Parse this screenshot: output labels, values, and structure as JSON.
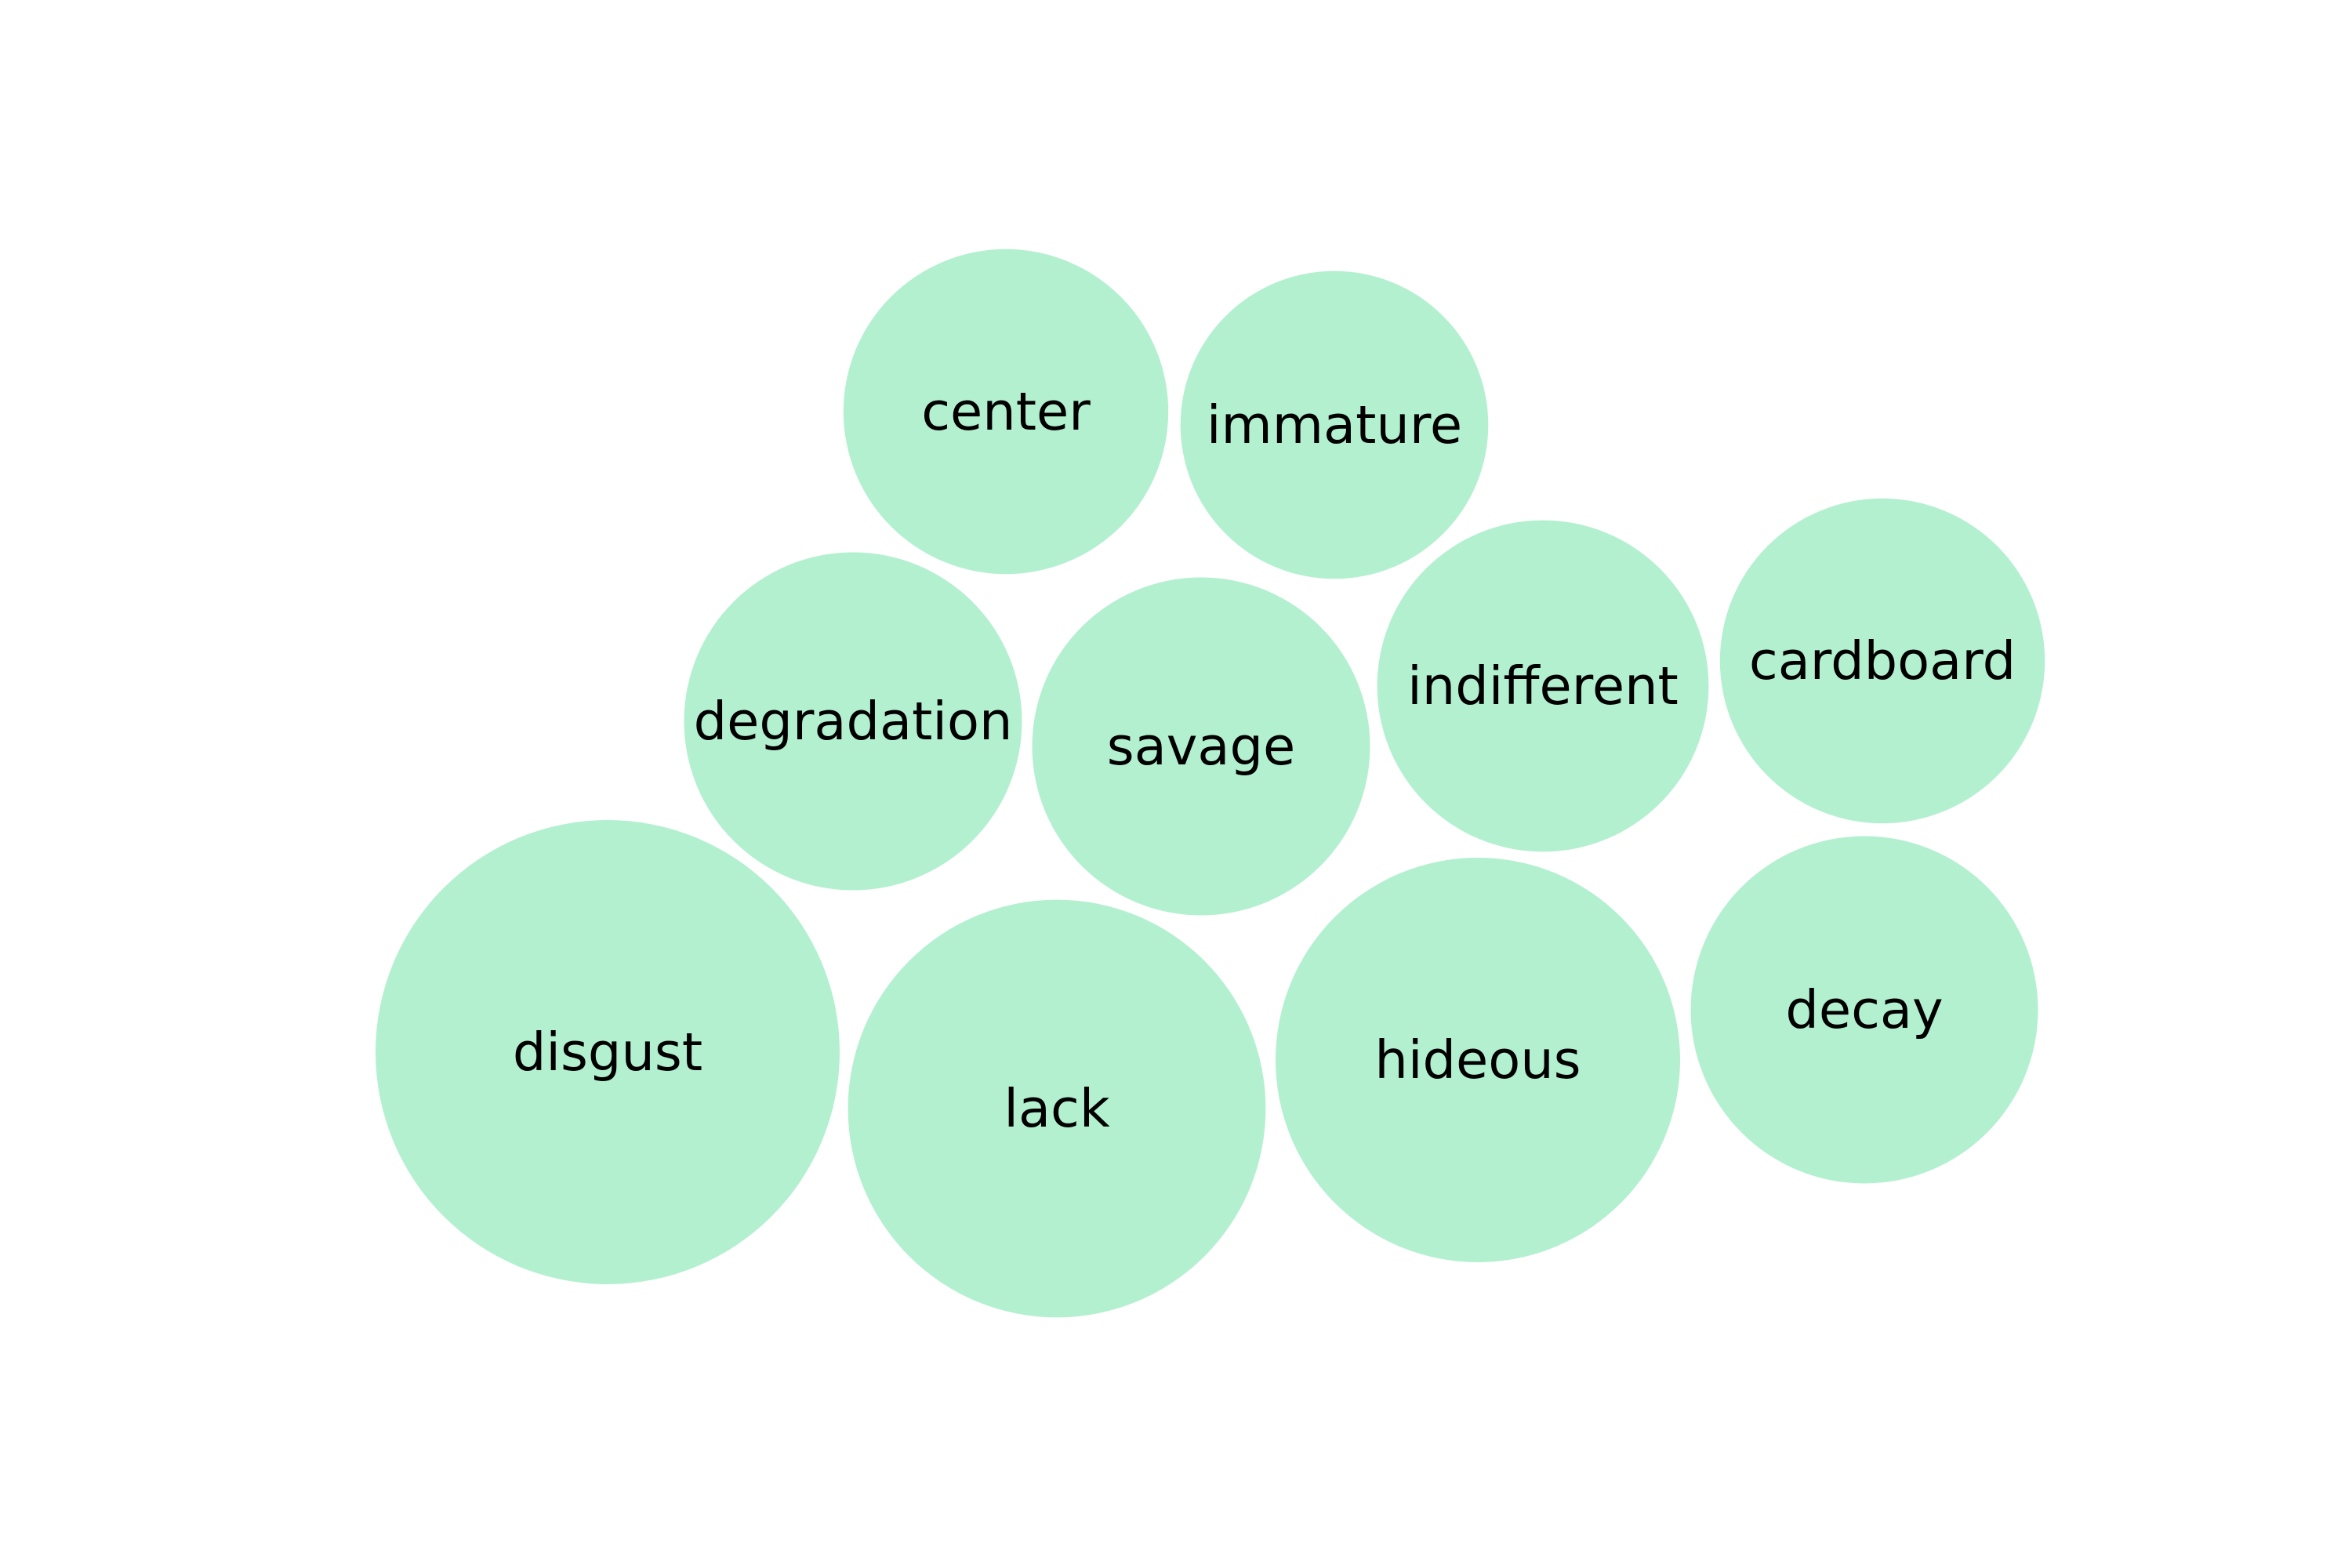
{
  "chart_data": {
    "type": "bubble",
    "title": "",
    "color": "#b2f0d0",
    "text_color": "#000000",
    "background": "#ffffff",
    "bubbles": [
      {
        "label": "disgust",
        "size": 1.0
      },
      {
        "label": "lack",
        "size": 0.81
      },
      {
        "label": "hideous",
        "size": 0.76
      },
      {
        "label": "decay",
        "size": 0.56
      },
      {
        "label": "savage",
        "size": 0.53
      },
      {
        "label": "degradation",
        "size": 0.53
      },
      {
        "label": "indifferent",
        "size": 0.51
      },
      {
        "label": "cardboard",
        "size": 0.49
      },
      {
        "label": "center",
        "size": 0.49
      },
      {
        "label": "immature",
        "size": 0.44
      }
    ]
  }
}
